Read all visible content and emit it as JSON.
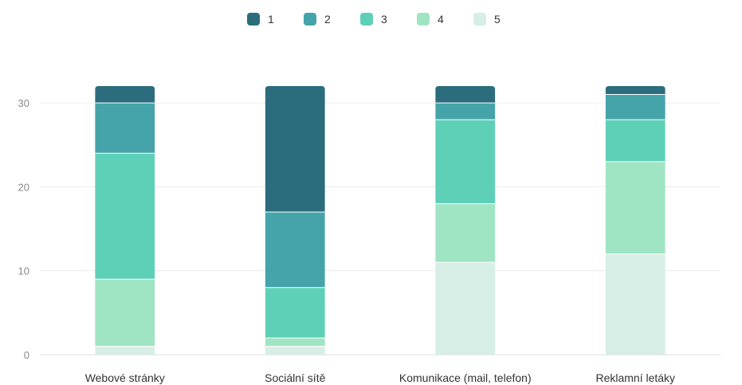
{
  "chart_data": {
    "type": "bar",
    "stacked": true,
    "categories": [
      "Webové stránky",
      "Sociální sítě",
      "Komunikace (mail, telefon)",
      "Reklamní letáky"
    ],
    "series": [
      {
        "name": "1",
        "color": "#2b6d7c",
        "values": [
          2,
          15,
          2,
          1
        ]
      },
      {
        "name": "2",
        "color": "#45a4aa",
        "values": [
          6,
          9,
          2,
          3
        ]
      },
      {
        "name": "3",
        "color": "#5ed0b8",
        "values": [
          15,
          6,
          10,
          5
        ]
      },
      {
        "name": "4",
        "color": "#a0e5c3",
        "values": [
          8,
          1,
          7,
          11
        ]
      },
      {
        "name": "5",
        "color": "#d6eee6",
        "values": [
          1,
          1,
          11,
          12
        ]
      }
    ],
    "yticks": [
      0,
      10,
      20,
      30
    ],
    "ylim": [
      0,
      32
    ],
    "grid": true,
    "legend": "top-center"
  }
}
